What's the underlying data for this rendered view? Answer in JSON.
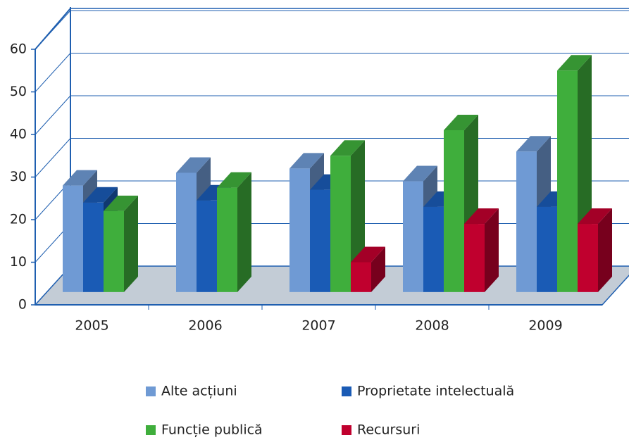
{
  "chart_data": {
    "type": "bar3d",
    "categories": [
      "2005",
      "2006",
      "2007",
      "2008",
      "2009"
    ],
    "series": [
      {
        "name": "Alte acțiuni",
        "color": "#6f9ad4",
        "values": [
          25,
          28,
          29,
          26,
          33
        ]
      },
      {
        "name": "Proprietate intelectuală",
        "color": "#1a5bb5",
        "values": [
          21,
          21.5,
          24,
          20,
          20
        ]
      },
      {
        "name": "Funcție publică",
        "color": "#3fae3c",
        "values": [
          19,
          24.5,
          32,
          38,
          52
        ]
      },
      {
        "name": "Recursuri",
        "color": "#c0002e",
        "values": [
          null,
          null,
          7,
          16,
          16
        ]
      }
    ],
    "ylim": [
      0,
      60
    ],
    "yticks": [
      0,
      10,
      20,
      30,
      40,
      50,
      60
    ],
    "grid": true,
    "legend": "bottom"
  }
}
